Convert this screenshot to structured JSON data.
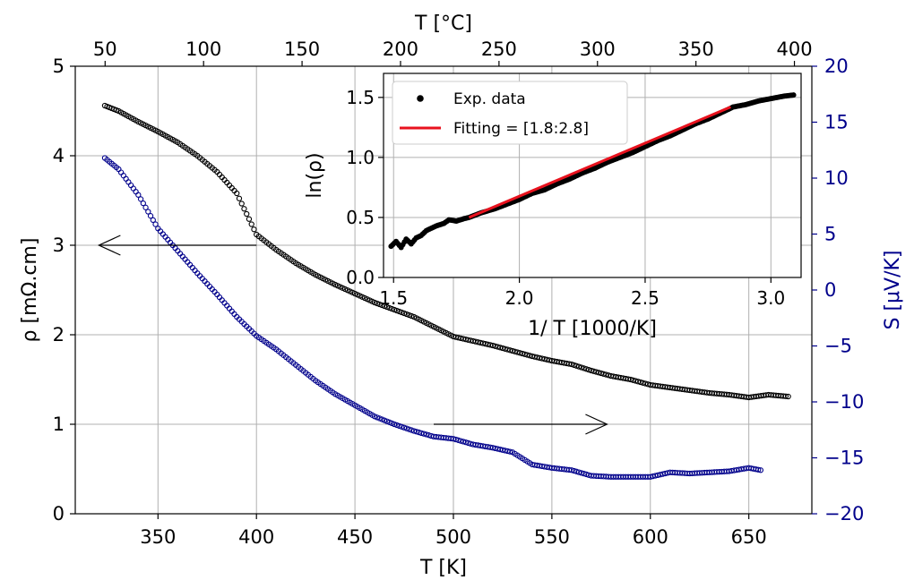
{
  "chart_data": [
    {
      "type": "scatter",
      "role": "main",
      "xlabel": "T [K]",
      "xlim": [
        308,
        682
      ],
      "x_ticks": [
        350,
        400,
        450,
        500,
        550,
        600,
        650
      ],
      "top_xlabel": "T [°C]",
      "top_x_ticks": [
        50,
        100,
        150,
        200,
        250,
        300,
        350,
        400
      ],
      "ylabel_left": "ρ [mΩ.cm]",
      "ylim_left": [
        0,
        5
      ],
      "y_ticks_left": [
        0,
        1,
        2,
        3,
        4,
        5
      ],
      "ylabel_right": "S [μV/K]",
      "ylim_right": [
        -20,
        20
      ],
      "y_ticks_right": [
        -20,
        -15,
        -10,
        -5,
        0,
        5,
        10,
        15,
        20
      ],
      "grid": true,
      "colors": {
        "resistivity": "#000000",
        "seebeck": "#00008b"
      },
      "series": [
        {
          "axis": "left",
          "marker": "open-circle",
          "color": "#000000",
          "points": [
            [
              323,
              4.56
            ],
            [
              330,
              4.5
            ],
            [
              340,
              4.38
            ],
            [
              350,
              4.27
            ],
            [
              360,
              4.15
            ],
            [
              370,
              4.0
            ],
            [
              380,
              3.82
            ],
            [
              390,
              3.58
            ],
            [
              400,
              3.12
            ],
            [
              410,
              2.95
            ],
            [
              420,
              2.8
            ],
            [
              430,
              2.67
            ],
            [
              440,
              2.56
            ],
            [
              450,
              2.46
            ],
            [
              460,
              2.36
            ],
            [
              470,
              2.28
            ],
            [
              480,
              2.2
            ],
            [
              490,
              2.09
            ],
            [
              500,
              1.98
            ],
            [
              510,
              1.93
            ],
            [
              520,
              1.88
            ],
            [
              530,
              1.82
            ],
            [
              540,
              1.76
            ],
            [
              550,
              1.71
            ],
            [
              560,
              1.67
            ],
            [
              570,
              1.6
            ],
            [
              580,
              1.54
            ],
            [
              590,
              1.5
            ],
            [
              600,
              1.44
            ],
            [
              610,
              1.41
            ],
            [
              620,
              1.38
            ],
            [
              630,
              1.35
            ],
            [
              640,
              1.33
            ],
            [
              650,
              1.3
            ],
            [
              660,
              1.33
            ],
            [
              670,
              1.31
            ]
          ]
        },
        {
          "axis": "right",
          "marker": "open-circle",
          "color": "#00008b",
          "points": [
            [
              323,
              11.8
            ],
            [
              330,
              10.8
            ],
            [
              340,
              8.5
            ],
            [
              350,
              5.5
            ],
            [
              360,
              3.5
            ],
            [
              370,
              1.5
            ],
            [
              380,
              -0.4
            ],
            [
              390,
              -2.4
            ],
            [
              400,
              -4.1
            ],
            [
              410,
              -5.3
            ],
            [
              420,
              -6.7
            ],
            [
              430,
              -8.1
            ],
            [
              440,
              -9.3
            ],
            [
              450,
              -10.3
            ],
            [
              460,
              -11.3
            ],
            [
              470,
              -12.0
            ],
            [
              480,
              -12.6
            ],
            [
              490,
              -13.1
            ],
            [
              500,
              -13.3
            ],
            [
              510,
              -13.8
            ],
            [
              520,
              -14.1
            ],
            [
              530,
              -14.5
            ],
            [
              540,
              -15.6
            ],
            [
              550,
              -15.9
            ],
            [
              560,
              -16.1
            ],
            [
              570,
              -16.6
            ],
            [
              580,
              -16.7
            ],
            [
              590,
              -16.7
            ],
            [
              600,
              -16.7
            ],
            [
              610,
              -16.3
            ],
            [
              620,
              -16.4
            ],
            [
              630,
              -16.3
            ],
            [
              640,
              -16.2
            ],
            [
              650,
              -15.9
            ],
            [
              656,
              -16.1
            ]
          ]
        }
      ],
      "annotations": [
        {
          "type": "arrow",
          "points_to": "left",
          "from": [
            400,
            3.0
          ],
          "to": [
            320,
            3.0
          ]
        },
        {
          "type": "arrow",
          "points_to": "right",
          "from": [
            490,
            1.0
          ],
          "to": [
            578,
            1.0
          ]
        }
      ]
    },
    {
      "type": "scatter",
      "role": "inset",
      "xlabel": "1/ T [1000/K]",
      "ylabel": "ln(ρ)",
      "xlim": [
        1.46,
        3.12
      ],
      "ylim": [
        0,
        1.7
      ],
      "x_ticks": [
        1.5,
        2.0,
        2.5,
        3.0
      ],
      "y_ticks": [
        0.0,
        0.5,
        1.0,
        1.5
      ],
      "grid": true,
      "legend": {
        "placement": "upper-left",
        "entries": [
          {
            "label": "Exp. data",
            "marker": "filled-circle",
            "color": "#000000"
          },
          {
            "label": "Fitting = [1.8:2.8]",
            "marker": "line",
            "color": "#e8121e"
          }
        ]
      },
      "series": [
        {
          "name": "Exp. data",
          "color": "#000000",
          "points": [
            [
              1.49,
              0.26
            ],
            [
              1.51,
              0.3
            ],
            [
              1.53,
              0.25
            ],
            [
              1.55,
              0.32
            ],
            [
              1.57,
              0.28
            ],
            [
              1.59,
              0.33
            ],
            [
              1.61,
              0.35
            ],
            [
              1.63,
              0.39
            ],
            [
              1.65,
              0.41
            ],
            [
              1.67,
              0.43
            ],
            [
              1.7,
              0.45
            ],
            [
              1.72,
              0.48
            ],
            [
              1.75,
              0.47
            ],
            [
              1.78,
              0.49
            ],
            [
              1.8,
              0.5
            ],
            [
              1.85,
              0.54
            ],
            [
              1.9,
              0.57
            ],
            [
              1.95,
              0.61
            ],
            [
              2.0,
              0.65
            ],
            [
              2.05,
              0.7
            ],
            [
              2.1,
              0.73
            ],
            [
              2.15,
              0.78
            ],
            [
              2.2,
              0.82
            ],
            [
              2.25,
              0.87
            ],
            [
              2.3,
              0.91
            ],
            [
              2.35,
              0.96
            ],
            [
              2.4,
              1.0
            ],
            [
              2.45,
              1.04
            ],
            [
              2.5,
              1.09
            ],
            [
              2.55,
              1.14
            ],
            [
              2.6,
              1.18
            ],
            [
              2.65,
              1.23
            ],
            [
              2.7,
              1.28
            ],
            [
              2.75,
              1.32
            ],
            [
              2.8,
              1.37
            ],
            [
              2.85,
              1.42
            ],
            [
              2.9,
              1.44
            ],
            [
              2.95,
              1.47
            ],
            [
              3.0,
              1.49
            ],
            [
              3.05,
              1.51
            ],
            [
              3.09,
              1.52
            ]
          ]
        },
        {
          "name": "Fitting = [1.8:2.8]",
          "color": "#e8121e",
          "line": [
            [
              1.8,
              0.5
            ],
            [
              2.84,
              1.42
            ]
          ]
        }
      ]
    }
  ]
}
